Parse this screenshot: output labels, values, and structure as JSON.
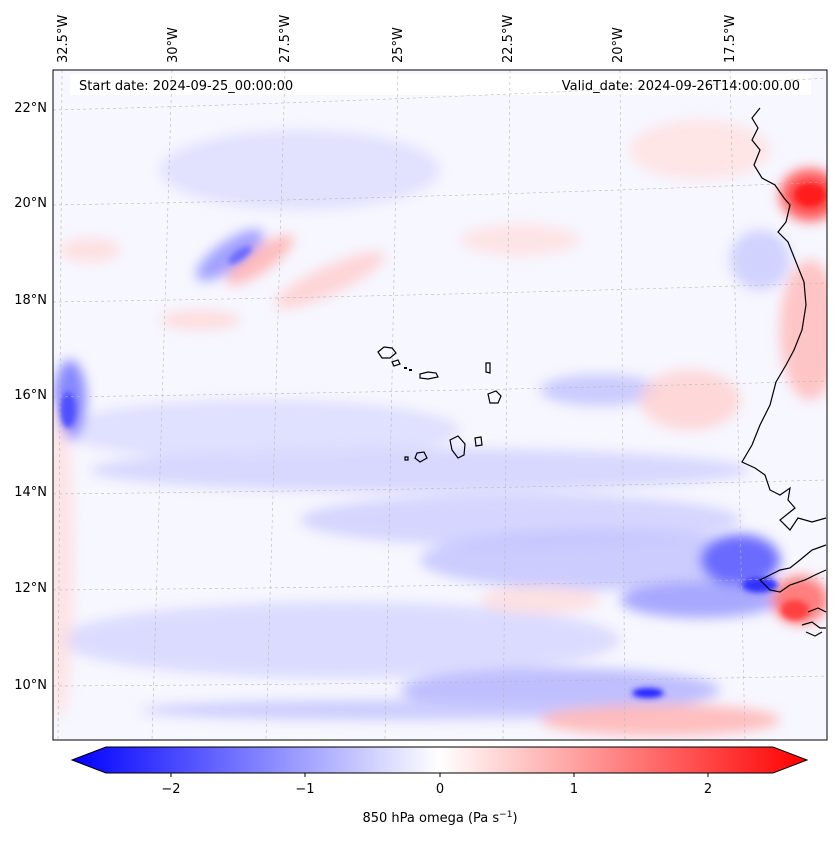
{
  "header": {
    "start_date": "Start date: 2024-09-25_00:00:00",
    "valid_date": "Valid_date: 2024-09-26T14:00:00.00"
  },
  "axes": {
    "lon_labels": [
      "32.5°W",
      "30°W",
      "27.5°W",
      "25°W",
      "22.5°W",
      "20°W",
      "17.5°W"
    ],
    "lat_labels": [
      "22°N",
      "20°N",
      "18°N",
      "16°N",
      "14°N",
      "12°N",
      "10°N"
    ]
  },
  "colorbar": {
    "ticks": [
      "−2",
      "−1",
      "0",
      "1",
      "2"
    ],
    "tick_values": [
      -2,
      -1,
      0,
      1,
      2
    ],
    "range": [
      -2.6,
      2.6
    ],
    "label_main": "850 hPa omega (Pa s",
    "label_sup": "−1",
    "label_close": ")",
    "colormap": "bwr",
    "colors": {
      "low": "#0000ff",
      "mid": "#ffffff",
      "high": "#ff0000"
    }
  },
  "map": {
    "variable": "850 hPa omega",
    "grid": true,
    "coastline_color": "#000000"
  }
}
